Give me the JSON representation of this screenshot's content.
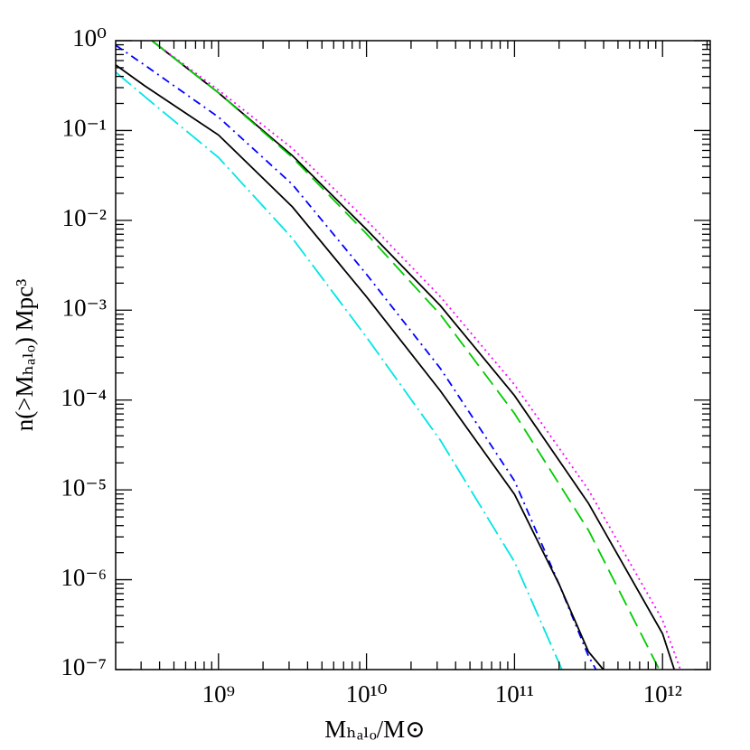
{
  "chart_data": {
    "type": "line",
    "xlabel": "Mₕₐₗₒ/M⊙",
    "ylabel": "n(>Mₕₐₗₒ) Mpc³",
    "xscale": "log",
    "yscale": "log",
    "grid": false,
    "xlim": [
      202000000.0,
      2100000000000.0
    ],
    "ylim": [
      1e-07,
      1
    ],
    "xticks": [
      {
        "value": 1000000000.0,
        "label": "10⁹"
      },
      {
        "value": 10000000000.0,
        "label": "10¹⁰"
      },
      {
        "value": 100000000000.0,
        "label": "10¹¹"
      },
      {
        "value": 1000000000000.0,
        "label": "10¹²"
      }
    ],
    "yticks": [
      {
        "value": 1,
        "label": "10⁰"
      },
      {
        "value": 0.1,
        "label": "10⁻¹"
      },
      {
        "value": 0.01,
        "label": "10⁻²"
      },
      {
        "value": 0.001,
        "label": "10⁻³"
      },
      {
        "value": 0.0001,
        "label": "10⁻⁴"
      },
      {
        "value": 1e-05,
        "label": "10⁻⁵"
      },
      {
        "value": 1e-06,
        "label": "10⁻⁶"
      },
      {
        "value": 1e-07,
        "label": "10⁻⁷"
      }
    ],
    "series": [
      {
        "color": "#000000",
        "style": "solid",
        "x": [
          355000000.0,
          1000000000.0,
          3160000000.0,
          10000000000.0,
          31600000000.0,
          100000000000.0,
          316000000000.0,
          1000000000000.0,
          1200000000000.0
        ],
        "values": [
          1,
          0.263,
          0.0525,
          0.00794,
          0.00112,
          0.000112,
          7.08e-06,
          2.51e-07,
          1e-07
        ]
      },
      {
        "color": "#ff00ff",
        "style": "dotted",
        "x": [
          355000000.0,
          1000000000.0,
          3160000000.0,
          10000000000.0,
          31600000000.0,
          100000000000.0,
          316000000000.0,
          1000000000000.0,
          1320000000000.0
        ],
        "values": [
          1,
          0.282,
          0.0631,
          0.01,
          0.00141,
          0.000148,
          1e-05,
          3.55e-07,
          1e-07
        ]
      },
      {
        "color": "#00cc00",
        "style": "dashed",
        "x": [
          355000000.0,
          1000000000.0,
          3160000000.0,
          10000000000.0,
          31600000000.0,
          100000000000.0,
          316000000000.0,
          950000000000.0
        ],
        "values": [
          1,
          0.263,
          0.0501,
          0.00708,
          0.000891,
          7.08e-05,
          3.55e-06,
          1e-07
        ]
      },
      {
        "color": "#0000ff",
        "style": "dashdot",
        "x": [
          202000000.0,
          316000000.0,
          1000000000.0,
          3160000000.0,
          10000000000.0,
          31600000000.0,
          100000000000.0,
          200000000000.0,
          316000000000.0,
          355000000000.0
        ],
        "values": [
          0.891,
          0.537,
          0.141,
          0.0251,
          0.00251,
          0.000224,
          1.26e-05,
          8.91e-07,
          1.41e-07,
          1e-07
        ]
      },
      {
        "color": "#000000",
        "style": "solid",
        "x": [
          202000000.0,
          316000000.0,
          1000000000.0,
          3160000000.0,
          10000000000.0,
          31600000000.0,
          100000000000.0,
          200000000000.0,
          316000000000.0,
          398000000000.0
        ],
        "values": [
          0.537,
          0.316,
          0.0891,
          0.0141,
          0.00141,
          0.000126,
          8.91e-06,
          8.91e-07,
          1.58e-07,
          1e-07
        ]
      },
      {
        "color": "#00e5e5",
        "style": "longdashdot",
        "x": [
          202000000.0,
          316000000.0,
          1000000000.0,
          3160000000.0,
          10000000000.0,
          31600000000.0,
          100000000000.0,
          209000000000.0
        ],
        "values": [
          0.447,
          0.24,
          0.0501,
          0.00631,
          0.000501,
          3.55e-05,
          1.58e-06,
          1e-07
        ]
      }
    ]
  }
}
